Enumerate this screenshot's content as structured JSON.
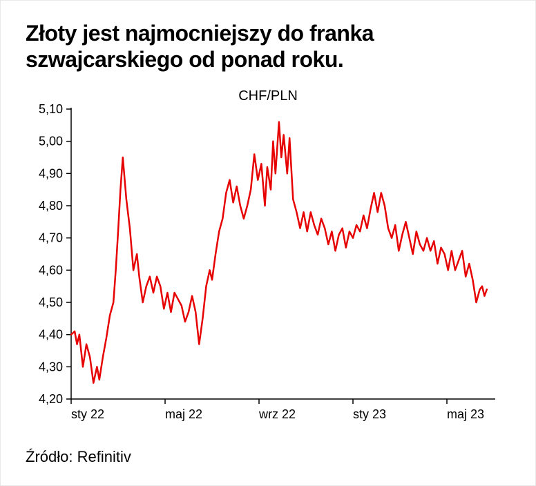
{
  "title": "Złoty jest najmocniejszy do franka szwajcarskiego od ponad roku.",
  "chart": {
    "type": "line",
    "label": "CHF/PLN",
    "label_fontsize": 20,
    "background_color": "#ffffff",
    "axis_color": "#000000",
    "tick_font_size": 18,
    "line_color": "#e60000",
    "line_width": 2.5,
    "y": {
      "min": 4.2,
      "max": 5.1,
      "tick_step": 0.1,
      "ticks": [
        4.2,
        4.3,
        4.4,
        4.5,
        4.6,
        4.7,
        4.8,
        4.9,
        5.0,
        5.1
      ],
      "tick_labels": [
        "4,20",
        "4,30",
        "4,40",
        "4,50",
        "4,60",
        "4,70",
        "4,80",
        "4,90",
        "5,00",
        "5,10"
      ]
    },
    "x": {
      "min": 0,
      "max": 18,
      "tick_positions": [
        0,
        4,
        8,
        12,
        16
      ],
      "tick_labels": [
        "sty 22",
        "maj 22",
        "wrz 22",
        "sty 23",
        "maj 23"
      ]
    },
    "series": [
      [
        0.0,
        4.4
      ],
      [
        0.15,
        4.41
      ],
      [
        0.25,
        4.37
      ],
      [
        0.35,
        4.4
      ],
      [
        0.5,
        4.3
      ],
      [
        0.65,
        4.37
      ],
      [
        0.8,
        4.33
      ],
      [
        0.95,
        4.25
      ],
      [
        1.1,
        4.3
      ],
      [
        1.2,
        4.26
      ],
      [
        1.35,
        4.33
      ],
      [
        1.5,
        4.39
      ],
      [
        1.65,
        4.46
      ],
      [
        1.8,
        4.5
      ],
      [
        1.9,
        4.6
      ],
      [
        2.0,
        4.72
      ],
      [
        2.1,
        4.85
      ],
      [
        2.2,
        4.95
      ],
      [
        2.35,
        4.82
      ],
      [
        2.5,
        4.73
      ],
      [
        2.65,
        4.6
      ],
      [
        2.8,
        4.65
      ],
      [
        2.9,
        4.58
      ],
      [
        3.05,
        4.5
      ],
      [
        3.2,
        4.55
      ],
      [
        3.35,
        4.58
      ],
      [
        3.5,
        4.53
      ],
      [
        3.65,
        4.58
      ],
      [
        3.8,
        4.55
      ],
      [
        3.95,
        4.48
      ],
      [
        4.1,
        4.53
      ],
      [
        4.25,
        4.47
      ],
      [
        4.4,
        4.53
      ],
      [
        4.55,
        4.51
      ],
      [
        4.7,
        4.49
      ],
      [
        4.85,
        4.44
      ],
      [
        5.0,
        4.47
      ],
      [
        5.15,
        4.52
      ],
      [
        5.3,
        4.47
      ],
      [
        5.45,
        4.37
      ],
      [
        5.6,
        4.45
      ],
      [
        5.75,
        4.55
      ],
      [
        5.9,
        4.6
      ],
      [
        6.0,
        4.57
      ],
      [
        6.15,
        4.65
      ],
      [
        6.3,
        4.72
      ],
      [
        6.45,
        4.76
      ],
      [
        6.6,
        4.84
      ],
      [
        6.75,
        4.88
      ],
      [
        6.9,
        4.81
      ],
      [
        7.05,
        4.86
      ],
      [
        7.2,
        4.8
      ],
      [
        7.35,
        4.76
      ],
      [
        7.5,
        4.8
      ],
      [
        7.65,
        4.85
      ],
      [
        7.8,
        4.96
      ],
      [
        7.95,
        4.88
      ],
      [
        8.1,
        4.93
      ],
      [
        8.25,
        4.8
      ],
      [
        8.35,
        4.92
      ],
      [
        8.5,
        4.85
      ],
      [
        8.6,
        5.0
      ],
      [
        8.7,
        4.9
      ],
      [
        8.85,
        5.06
      ],
      [
        8.95,
        4.95
      ],
      [
        9.05,
        5.02
      ],
      [
        9.2,
        4.9
      ],
      [
        9.3,
        5.01
      ],
      [
        9.45,
        4.82
      ],
      [
        9.6,
        4.78
      ],
      [
        9.75,
        4.73
      ],
      [
        9.9,
        4.78
      ],
      [
        10.05,
        4.72
      ],
      [
        10.2,
        4.78
      ],
      [
        10.35,
        4.74
      ],
      [
        10.5,
        4.71
      ],
      [
        10.65,
        4.76
      ],
      [
        10.8,
        4.73
      ],
      [
        10.95,
        4.68
      ],
      [
        11.1,
        4.72
      ],
      [
        11.25,
        4.66
      ],
      [
        11.4,
        4.71
      ],
      [
        11.55,
        4.73
      ],
      [
        11.7,
        4.67
      ],
      [
        11.85,
        4.72
      ],
      [
        12.0,
        4.7
      ],
      [
        12.15,
        4.74
      ],
      [
        12.3,
        4.72
      ],
      [
        12.45,
        4.77
      ],
      [
        12.6,
        4.73
      ],
      [
        12.75,
        4.79
      ],
      [
        12.9,
        4.84
      ],
      [
        13.05,
        4.78
      ],
      [
        13.2,
        4.84
      ],
      [
        13.35,
        4.8
      ],
      [
        13.5,
        4.73
      ],
      [
        13.65,
        4.7
      ],
      [
        13.8,
        4.74
      ],
      [
        13.95,
        4.66
      ],
      [
        14.1,
        4.71
      ],
      [
        14.25,
        4.75
      ],
      [
        14.4,
        4.7
      ],
      [
        14.55,
        4.65
      ],
      [
        14.7,
        4.72
      ],
      [
        14.85,
        4.68
      ],
      [
        15.0,
        4.66
      ],
      [
        15.15,
        4.7
      ],
      [
        15.3,
        4.66
      ],
      [
        15.45,
        4.69
      ],
      [
        15.6,
        4.62
      ],
      [
        15.75,
        4.67
      ],
      [
        15.9,
        4.65
      ],
      [
        16.05,
        4.6
      ],
      [
        16.2,
        4.66
      ],
      [
        16.35,
        4.6
      ],
      [
        16.5,
        4.63
      ],
      [
        16.65,
        4.66
      ],
      [
        16.8,
        4.58
      ],
      [
        16.95,
        4.62
      ],
      [
        17.1,
        4.57
      ],
      [
        17.25,
        4.5
      ],
      [
        17.4,
        4.54
      ],
      [
        17.5,
        4.55
      ],
      [
        17.6,
        4.52
      ],
      [
        17.7,
        4.54
      ]
    ]
  },
  "source_label": "Źródło: Refinitiv"
}
